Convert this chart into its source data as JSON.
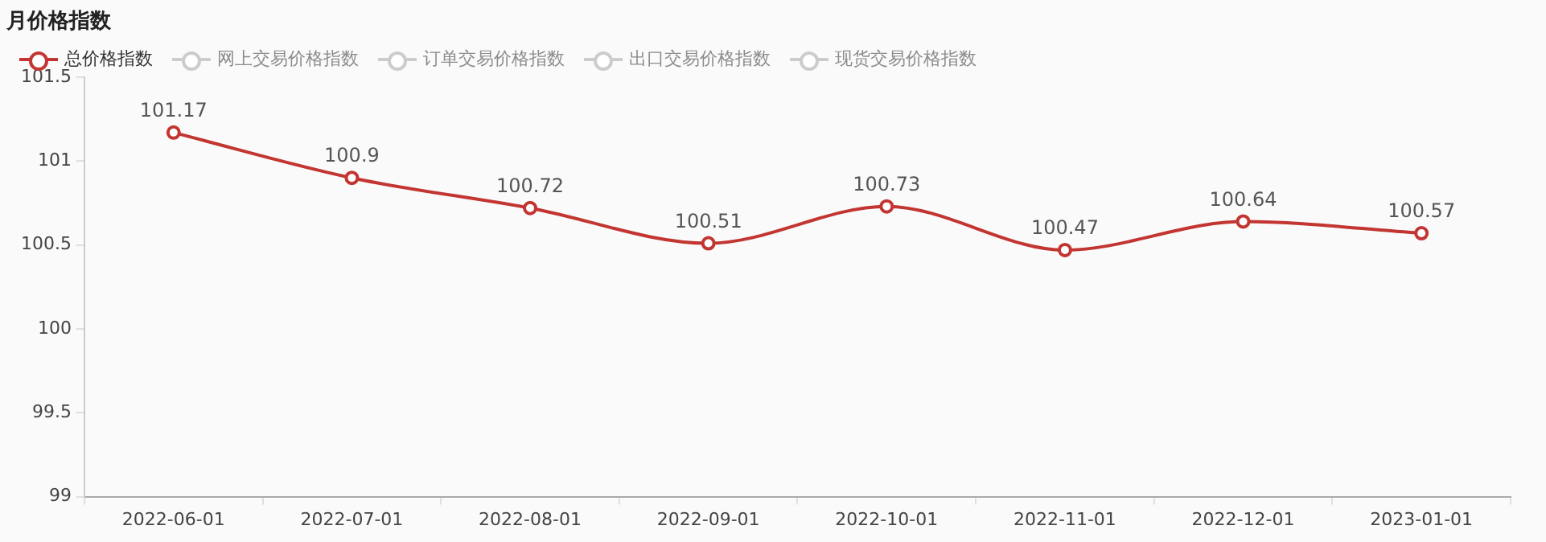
{
  "chart_data": {
    "type": "line",
    "title": "月价格指数",
    "categories": [
      "2022-06-01",
      "2022-07-01",
      "2022-08-01",
      "2022-09-01",
      "2022-10-01",
      "2022-11-01",
      "2022-12-01",
      "2023-01-01"
    ],
    "series": [
      {
        "name": "总价格指数",
        "color": "#c23531",
        "values": [
          101.17,
          100.9,
          100.72,
          100.51,
          100.73,
          100.47,
          100.64,
          100.57
        ]
      },
      {
        "name": "网上交易价格指数",
        "color": "#cccccc",
        "values": [
          null,
          null,
          null,
          null,
          null,
          null,
          null,
          null
        ]
      },
      {
        "name": "订单交易价格指数",
        "color": "#cccccc",
        "values": [
          null,
          null,
          null,
          null,
          null,
          null,
          null,
          null
        ]
      },
      {
        "name": "出口交易价格指数",
        "color": "#cccccc",
        "values": [
          null,
          null,
          null,
          null,
          null,
          null,
          null,
          null
        ]
      },
      {
        "name": "现货交易价格指数",
        "color": "#cccccc",
        "values": [
          null,
          null,
          null,
          null,
          null,
          null,
          null,
          null
        ]
      }
    ],
    "ylim": [
      99,
      101.5
    ],
    "yticks": [
      99,
      99.5,
      100,
      100.5,
      101,
      101.5
    ],
    "grid": false,
    "legend": "top left",
    "marker": "circle",
    "line_style": "solid",
    "data_labels": true
  }
}
